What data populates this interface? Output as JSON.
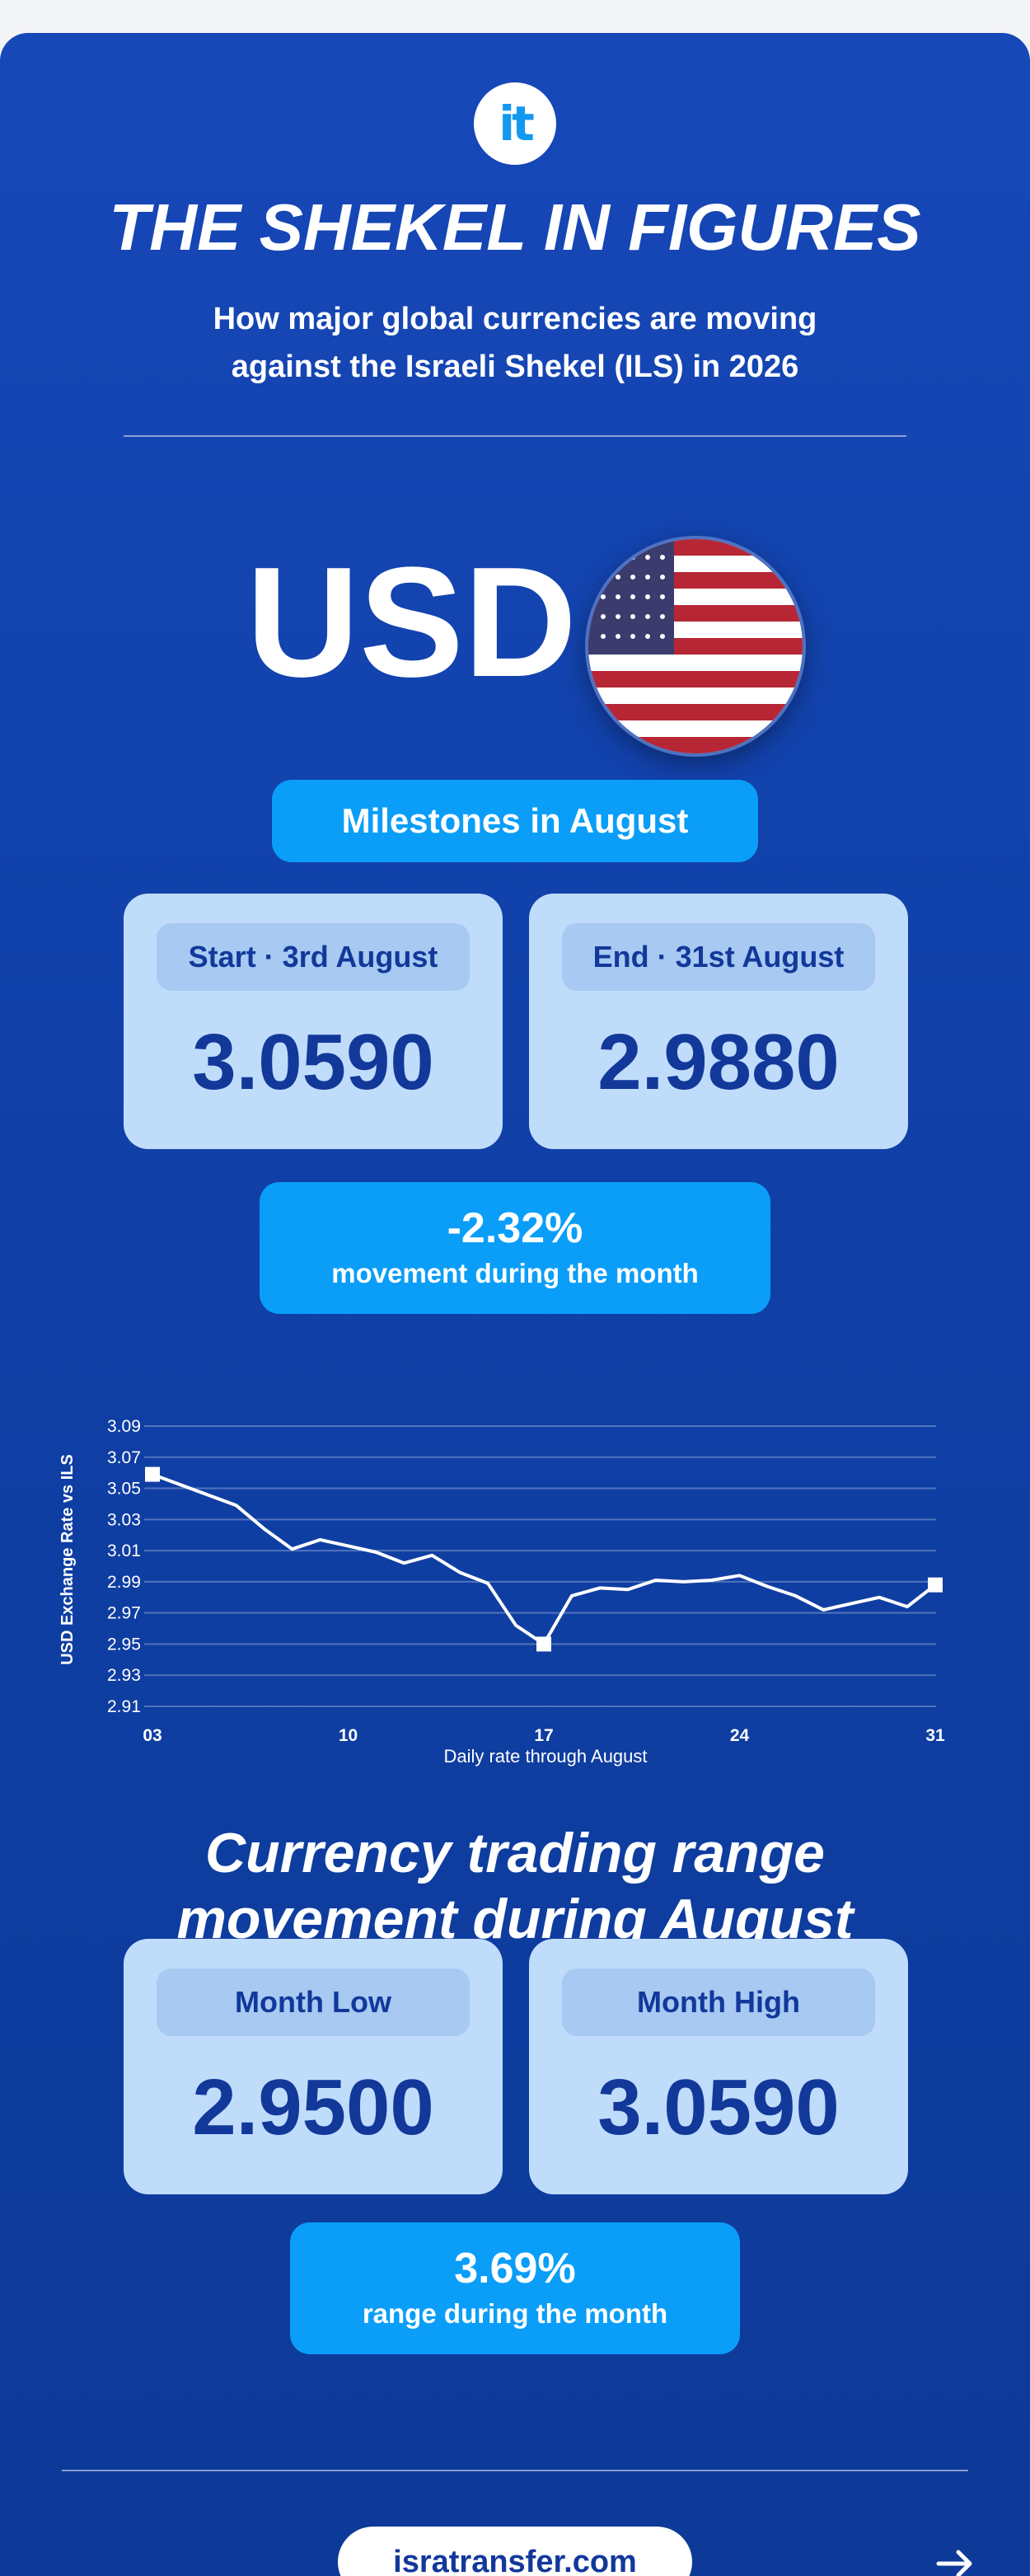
{
  "header": {
    "logo_text": "it",
    "title": "THE SHEKEL IN FIGURES",
    "subtitle": "How major global currencies are moving against the Israeli Shekel (ILS) in 2026"
  },
  "currency": {
    "code": "USD",
    "flag": "us-flag-icon"
  },
  "milestones": {
    "heading": "Milestones in August",
    "start_label": "Start · 3rd August",
    "start_value": "3.0590",
    "end_label": "End · 31st August",
    "end_value": "2.9880",
    "change_pct": "-2.32%",
    "change_caption": "movement during the month"
  },
  "chart_data": {
    "type": "line",
    "ylabel": "USD Exchange Rate vs ILS",
    "xlabel": "Daily rate through August",
    "ylim": [
      2.91,
      3.09
    ],
    "yticks": [
      "3.09",
      "3.07",
      "3.05",
      "3.03",
      "3.01",
      "2.99",
      "2.97",
      "2.95",
      "2.93",
      "2.91"
    ],
    "xticks": [
      "03",
      "10",
      "17",
      "24",
      "31"
    ],
    "grid": true,
    "series": [
      {
        "x": [
          3,
          6,
          7,
          8,
          9,
          10,
          11,
          12,
          13,
          14,
          15,
          16,
          17,
          18,
          19,
          20,
          21,
          22,
          23,
          24,
          25,
          26,
          27,
          28,
          29,
          30,
          31
        ],
        "values": [
          3.059,
          3.039,
          3.024,
          3.011,
          3.017,
          3.013,
          3.009,
          3.002,
          3.007,
          2.996,
          2.989,
          2.962,
          2.95,
          2.981,
          2.986,
          2.985,
          2.991,
          2.99,
          2.991,
          2.994,
          2.987,
          2.981,
          2.972,
          2.976,
          2.98,
          2.974,
          2.988
        ]
      }
    ],
    "markers": [
      {
        "x": 3,
        "y": 3.059
      },
      {
        "x": 17,
        "y": 2.95
      },
      {
        "x": 31,
        "y": 2.988
      }
    ]
  },
  "range": {
    "heading": "Currency trading range movement during August",
    "low_label": "Month Low",
    "low_value": "2.9500",
    "high_label": "Month High",
    "high_value": "3.0590",
    "range_pct": "3.69%",
    "range_caption": "range during the month"
  },
  "footer": {
    "website": "isratransfer.com",
    "next_icon": "arrow-right-icon"
  },
  "colors": {
    "background": "#1546b0",
    "accent": "#0a9ef8",
    "box": "#bfdcfb",
    "box_text": "#12389a"
  }
}
